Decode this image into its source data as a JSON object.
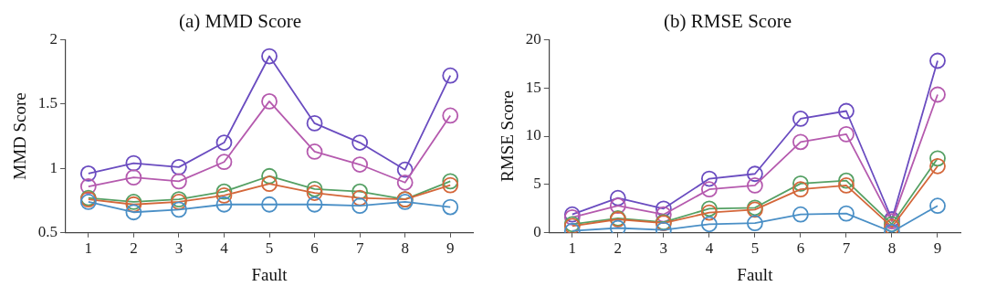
{
  "chart_data": [
    {
      "type": "line",
      "title": "(a) MMD Score",
      "xlabel": "Fault",
      "ylabel": "MMD Score",
      "categories": [
        "1",
        "2",
        "3",
        "4",
        "5",
        "6",
        "7",
        "8",
        "9"
      ],
      "ylim": [
        0.5,
        2
      ],
      "yticks": [
        {
          "value": 0.5,
          "label": "0.5"
        },
        1,
        {
          "value": 1.5,
          "label": "1.5"
        },
        2
      ],
      "grid": false,
      "legend": false,
      "marker": "circle",
      "line_style": "solid",
      "series": [
        {
          "color": "#4a8fc6",
          "values": [
            0.74,
            0.66,
            0.68,
            0.72,
            0.72,
            0.72,
            0.71,
            0.74,
            0.7
          ]
        },
        {
          "color": "#d4673a",
          "values": [
            0.76,
            0.72,
            0.74,
            0.79,
            0.88,
            0.81,
            0.77,
            0.76,
            0.87
          ]
        },
        {
          "color": "#55a064",
          "values": [
            0.77,
            0.74,
            0.76,
            0.82,
            0.94,
            0.84,
            0.82,
            0.76,
            0.9
          ]
        },
        {
          "color": "#b55aae",
          "values": [
            0.86,
            0.93,
            0.9,
            1.05,
            1.52,
            1.13,
            1.03,
            0.89,
            1.41
          ]
        },
        {
          "color": "#6a4cc0",
          "values": [
            0.96,
            1.04,
            1.01,
            1.2,
            1.87,
            1.35,
            1.2,
            0.99,
            1.72
          ]
        }
      ]
    },
    {
      "type": "line",
      "title": "(b) RMSE Score",
      "xlabel": "Fault",
      "ylabel": "RMSE Score",
      "categories": [
        "1",
        "2",
        "3",
        "4",
        "5",
        "6",
        "7",
        "8",
        "9"
      ],
      "ylim": [
        0,
        20
      ],
      "yticks": [
        0,
        5,
        10,
        15,
        20
      ],
      "grid": false,
      "legend": false,
      "marker": "circle",
      "line_style": "solid",
      "series": [
        {
          "color": "#4a8fc6",
          "values": [
            0.2,
            0.5,
            0.3,
            0.9,
            1.0,
            1.9,
            2.0,
            0.1,
            2.8
          ]
        },
        {
          "color": "#d4673a",
          "values": [
            0.7,
            1.4,
            1.0,
            2.1,
            2.4,
            4.5,
            4.9,
            0.6,
            6.9
          ]
        },
        {
          "color": "#55a064",
          "values": [
            0.9,
            1.5,
            1.1,
            2.5,
            2.6,
            5.1,
            5.4,
            0.9,
            7.7
          ]
        },
        {
          "color": "#b55aae",
          "values": [
            1.6,
            2.8,
            1.9,
            4.5,
            4.9,
            9.4,
            10.2,
            1.2,
            14.3
          ]
        },
        {
          "color": "#6a4cc0",
          "values": [
            1.9,
            3.6,
            2.5,
            5.6,
            6.1,
            11.8,
            12.6,
            1.4,
            17.8
          ]
        }
      ]
    }
  ]
}
